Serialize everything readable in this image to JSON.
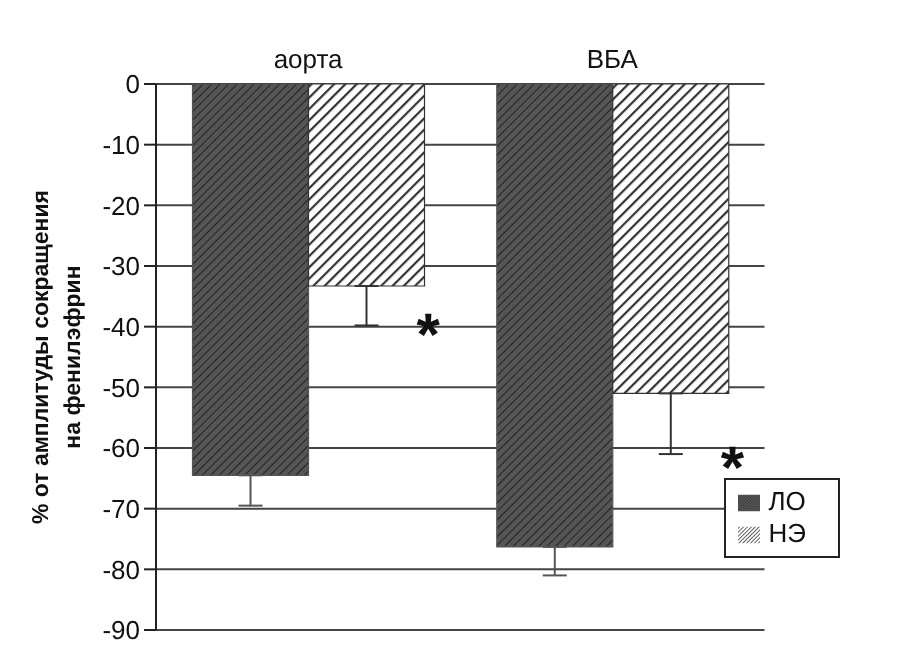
{
  "chart_data": {
    "type": "bar",
    "ylabel": "% от амплитуды сокращения\nна фенилэфрин",
    "categories": [
      "аорта",
      "ВБА"
    ],
    "series": [
      {
        "name": "ЛО",
        "color": "#555555",
        "values": [
          -64.5,
          -76.3
        ],
        "errors": [
          [
            -69.5,
            -64.5
          ],
          [
            -81,
            -76.3
          ]
        ]
      },
      {
        "name": "НЭ",
        "color": "#333333",
        "values": [
          -33.3,
          -51
        ],
        "errors": [
          [
            -39.8,
            -33.3
          ],
          [
            -61,
            -51
          ]
        ]
      }
    ],
    "ylim": [
      -90,
      0
    ],
    "yticks": [
      0,
      -10,
      -20,
      -30,
      -40,
      -50,
      -60,
      -70,
      -80,
      -90
    ],
    "grid": "y",
    "legend": "bottom right",
    "annotations": [
      {
        "text": "*",
        "x": "аорта",
        "y": -40
      },
      {
        "text": "*",
        "x": "ВБА",
        "y": -62
      }
    ]
  }
}
